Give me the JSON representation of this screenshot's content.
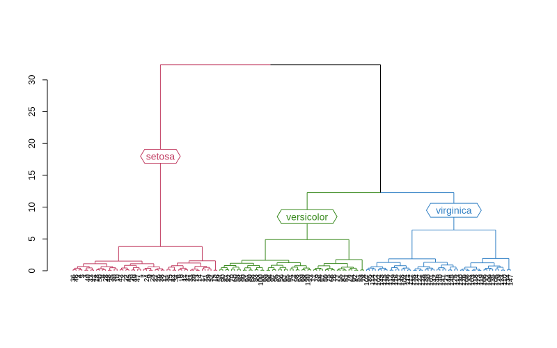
{
  "chart_data": {
    "type": "dendrogram",
    "title": "",
    "xlabel": "",
    "ylabel": "",
    "ylim": [
      0,
      32.4
    ],
    "yticks": [
      0,
      5,
      10,
      15,
      20,
      25,
      30
    ],
    "root_height": 32.4,
    "clusters": [
      {
        "name": "setosa",
        "color": "#c0395f",
        "root_height": 3.8,
        "label_height": 18.0,
        "leaves": [
          "36",
          "46",
          "4",
          "5",
          "3",
          "40",
          "43",
          "41",
          "18",
          "50",
          "8",
          "28",
          "48",
          "35",
          "30",
          "10",
          "42",
          "2",
          "22",
          "45",
          "20",
          "49",
          "47",
          "1",
          "7",
          "24",
          "9",
          "23",
          "27",
          "26",
          "38",
          "12",
          "31",
          "25",
          "44",
          "34",
          "6",
          "19",
          "11",
          "37",
          "33",
          "39",
          "13",
          "14",
          "17",
          "21",
          "29",
          "32",
          "15",
          "16"
        ]
      },
      {
        "name": "versicolor",
        "color": "#3a8a1f",
        "root_height": 4.9,
        "label_height": 8.5,
        "leaves": [
          "54",
          "90",
          "81",
          "82",
          "70",
          "60",
          "58",
          "94",
          "99",
          "61",
          "80",
          "68",
          "93",
          "83",
          "100",
          "65",
          "89",
          "96",
          "97",
          "95",
          "62",
          "56",
          "67",
          "85",
          "91",
          "72",
          "98",
          "63",
          "69",
          "88",
          "120",
          "73",
          "71",
          "79",
          "86",
          "57",
          "59",
          "75",
          "66",
          "76",
          "77",
          "55",
          "87",
          "52",
          "74",
          "64",
          "92",
          "51",
          "53",
          "78"
        ]
      },
      {
        "name": "virginica",
        "color": "#2f7fc4",
        "root_height": 6.4,
        "label_height": 9.5,
        "leaves": [
          "107",
          "85",
          "114",
          "122",
          "102",
          "143",
          "115",
          "136",
          "112",
          "149",
          "116",
          "137",
          "148",
          "104",
          "111",
          "117",
          "138",
          "124",
          "127",
          "128",
          "139",
          "150",
          "101",
          "142",
          "146",
          "140",
          "141",
          "121",
          "144",
          "145",
          "125",
          "113",
          "130",
          "126",
          "108",
          "131",
          "103",
          "118",
          "123",
          "119",
          "106",
          "132",
          "109",
          "135",
          "105",
          "129",
          "133",
          "110",
          "134",
          "147"
        ]
      }
    ],
    "merge_versicolor_virginica_height": 12.3,
    "root_branch_color_left": "#c0395f",
    "root_branch_color_right": "#000000",
    "axis_color": "#000000"
  }
}
